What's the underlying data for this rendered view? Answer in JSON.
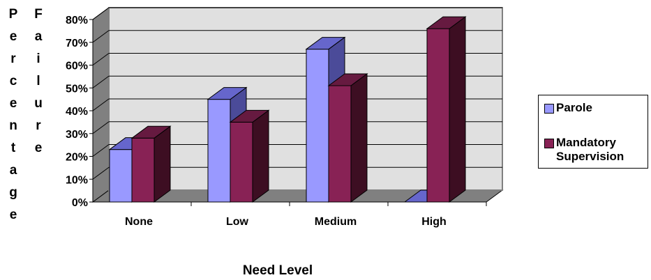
{
  "chart_data": {
    "type": "bar",
    "categories": [
      "None",
      "Low",
      "Medium",
      "High"
    ],
    "series": [
      {
        "name": "Parole",
        "values": [
          23,
          45,
          67,
          0
        ],
        "color": "#9999ff",
        "side_color": "#4b4b99",
        "top_color": "#6666cc"
      },
      {
        "name": "Mandatory Supervision",
        "values": [
          28,
          35,
          51,
          76
        ],
        "color": "#882255",
        "side_color": "#3d0e22",
        "top_color": "#661a40"
      }
    ],
    "ylabel_col1": [
      "P",
      "e",
      "r",
      "c",
      "e",
      "n",
      "t",
      "a",
      "g",
      "e"
    ],
    "ylabel_col2": [
      "F",
      "a",
      "i",
      "l",
      "u",
      "r",
      "e"
    ],
    "xlabel": "Need Level",
    "yticks": [
      "0%",
      "10%",
      "20%",
      "30%",
      "40%",
      "50%",
      "60%",
      "70%",
      "80%"
    ],
    "ylim": [
      0,
      80
    ],
    "grid": true,
    "legend_position": "right",
    "wall_color": "#e0e0e0",
    "floor_color": "#808080"
  }
}
